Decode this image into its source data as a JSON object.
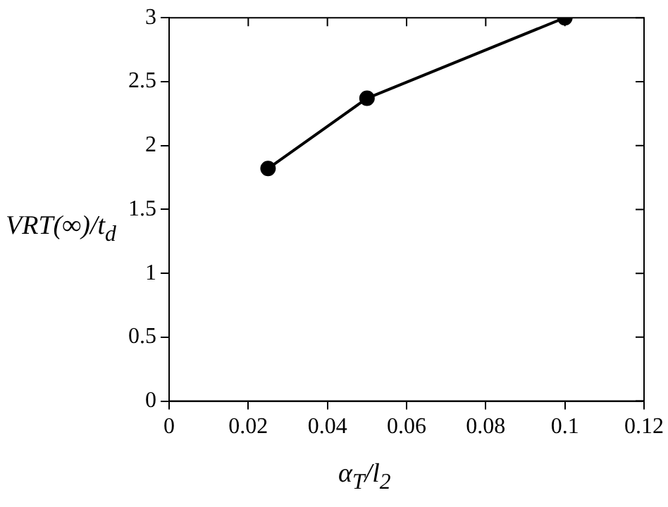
{
  "chart_data": {
    "type": "line",
    "xlabel": "α$_{T}$/l$_{2}$",
    "ylabel": "VRT(∞)/t$_{d}$",
    "x": [
      0.025,
      0.05,
      0.1
    ],
    "series": [
      {
        "color": "#000000",
        "values": [
          1.82,
          2.37,
          3.0
        ]
      }
    ],
    "xlim": [
      0,
      0.12
    ],
    "xticks": [
      0,
      0.02,
      0.04,
      0.06,
      0.08,
      0.1,
      0.12
    ],
    "ylim": [
      0,
      3
    ],
    "yticks": [
      0,
      0.5,
      1,
      1.5,
      2,
      2.5,
      3
    ],
    "marker": "circle",
    "line_style": "solid",
    "grid": false,
    "legend": false
  }
}
